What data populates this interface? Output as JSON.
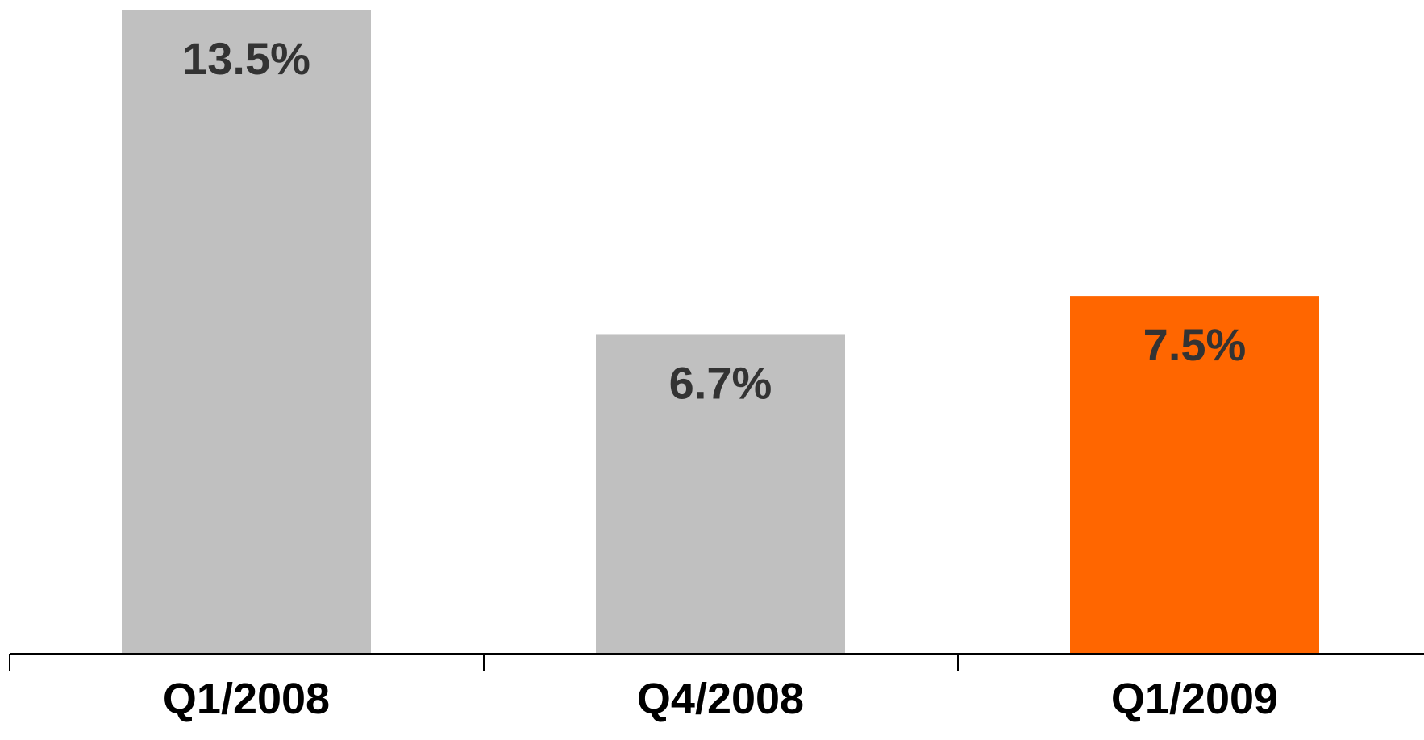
{
  "chart_data": {
    "type": "bar",
    "categories": [
      "Q1/2008",
      "Q4/2008",
      "Q1/2009"
    ],
    "values": [
      13.5,
      6.7,
      7.5
    ],
    "value_labels": [
      "13.5%",
      "6.7%",
      "7.5%"
    ],
    "unit": "%",
    "ylim": [
      0,
      13.5
    ],
    "grid": false,
    "legend": "none",
    "title": "",
    "xlabel": "",
    "ylabel": "",
    "bar_colors": [
      "#c0c0c0",
      "#c0c0c0",
      "#ff6600"
    ],
    "label_color": "#333333",
    "axis_color": "#000000"
  }
}
